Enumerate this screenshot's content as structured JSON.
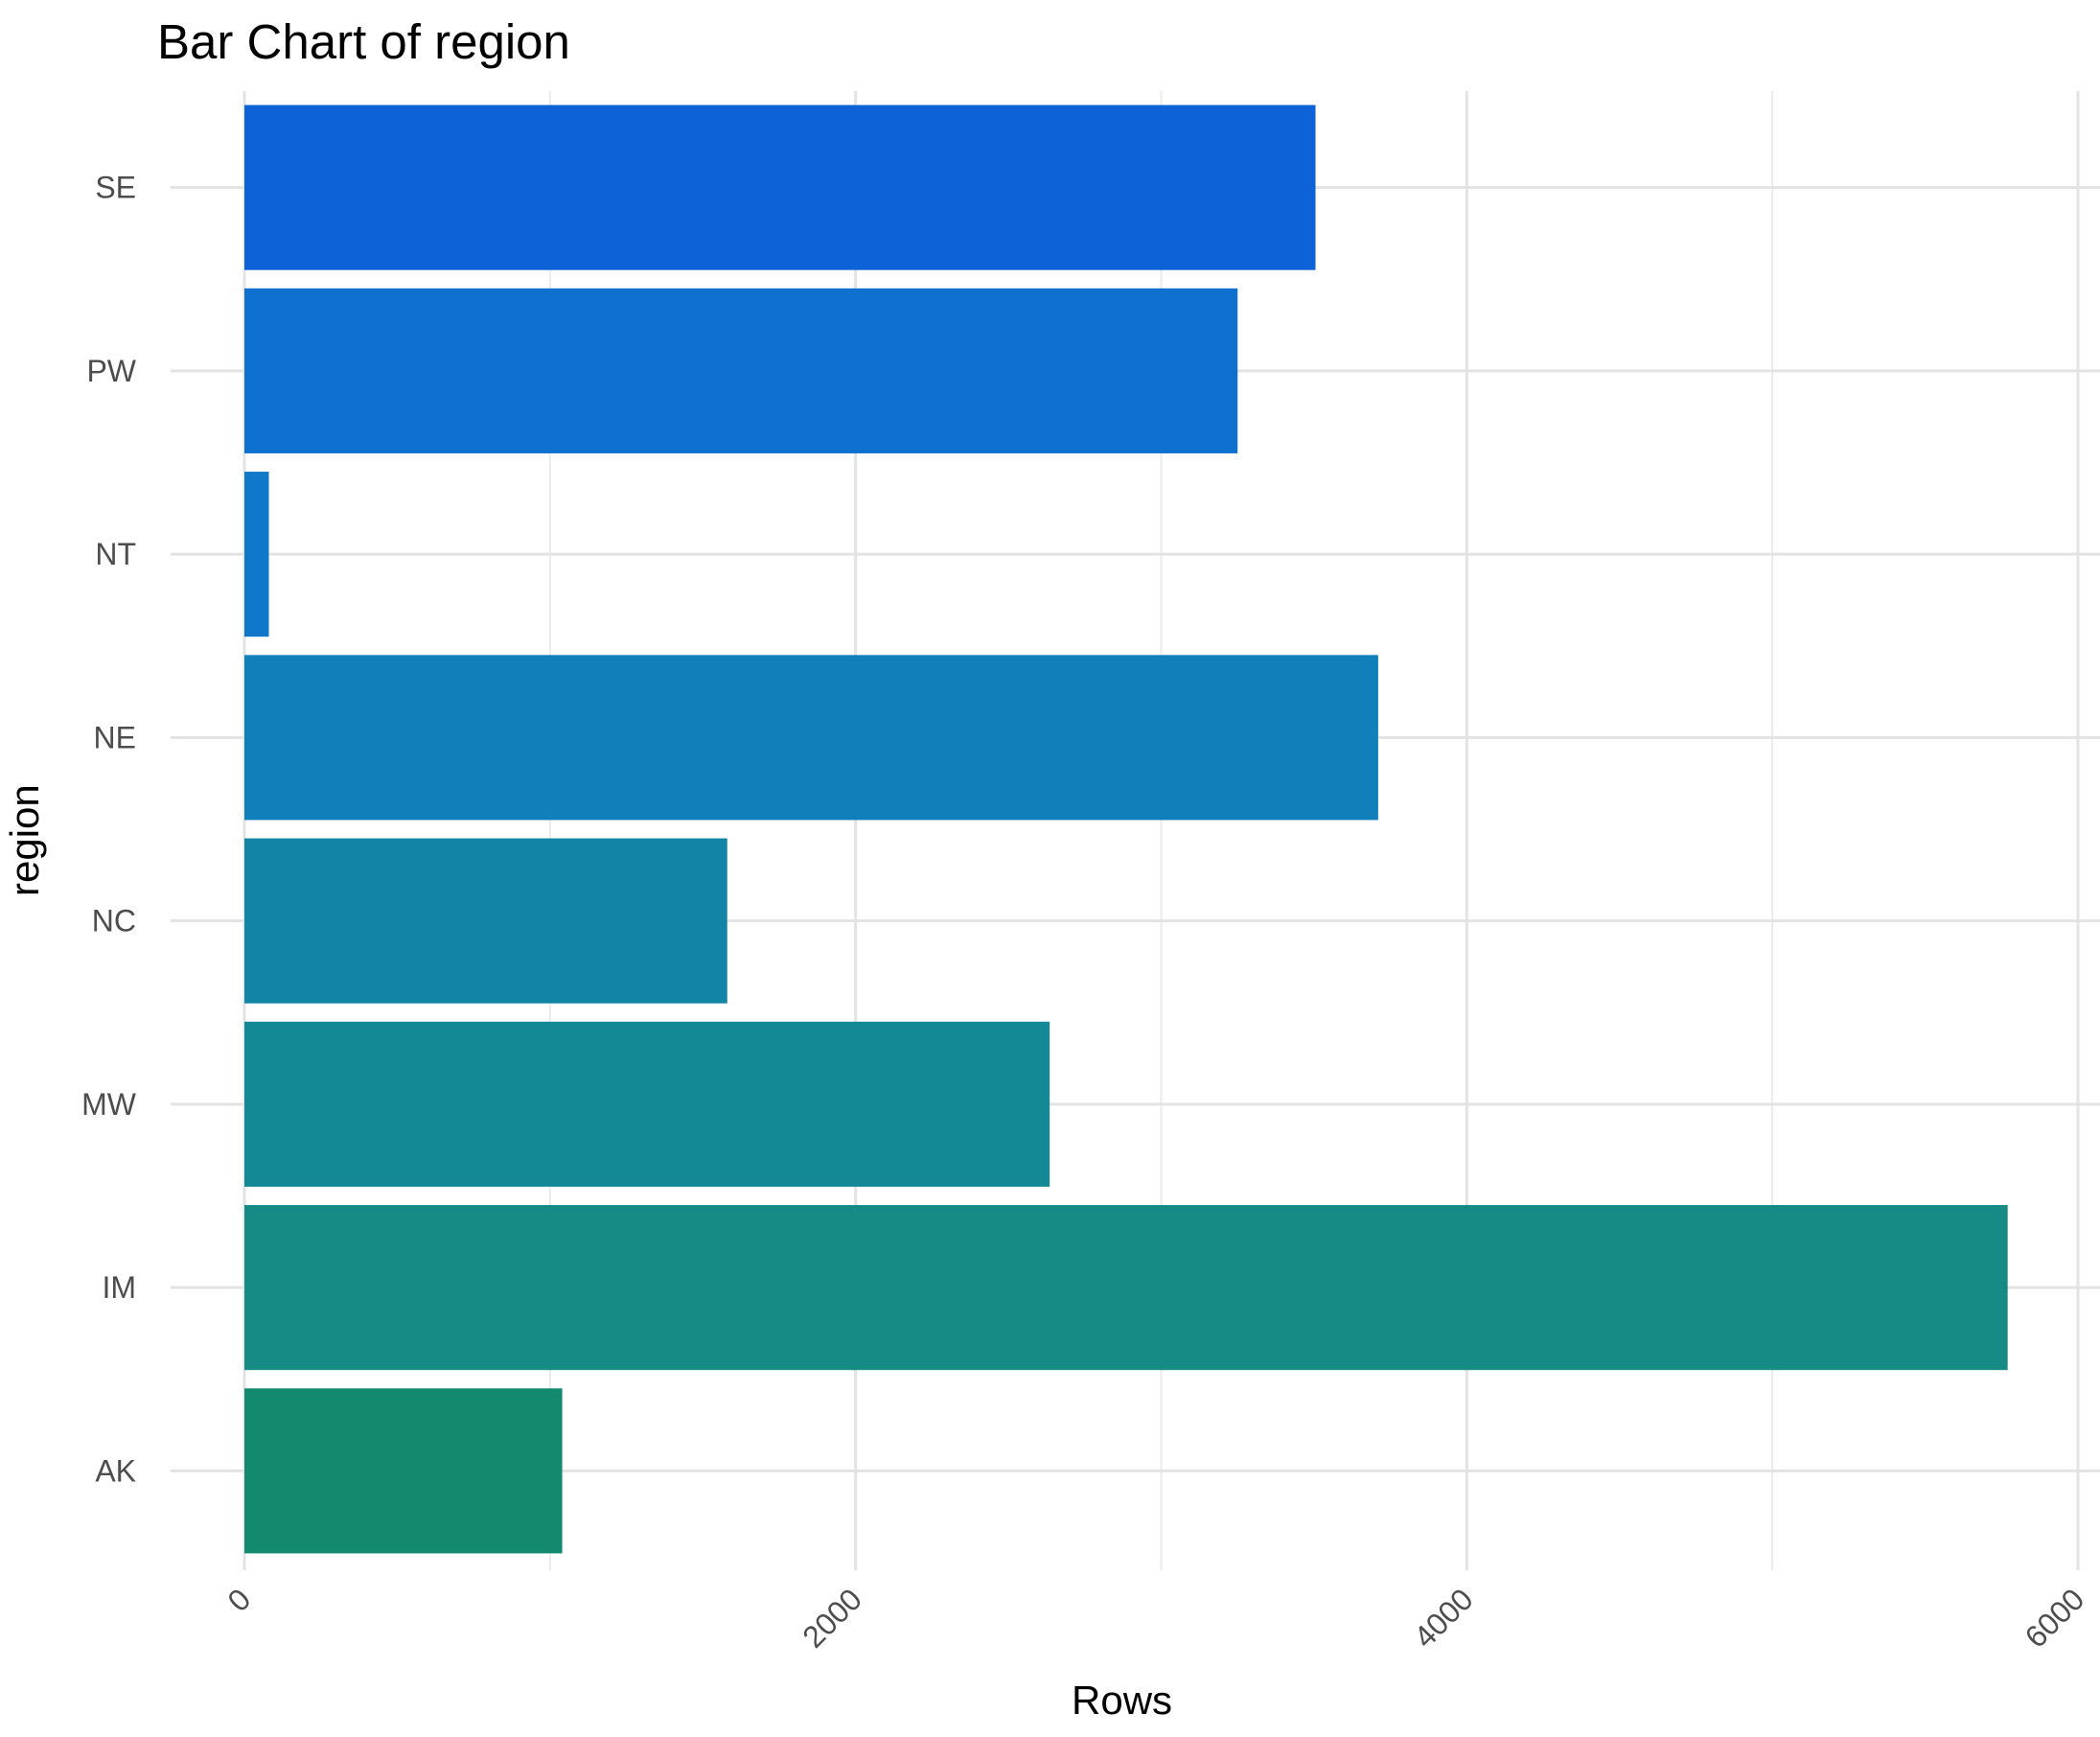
{
  "chart_data": {
    "type": "bar",
    "orientation": "horizontal",
    "title": "Bar Chart of region",
    "xlabel": "Rows",
    "ylabel": "region",
    "categories": [
      "AK",
      "IM",
      "MW",
      "NC",
      "NE",
      "NT",
      "PW",
      "SE"
    ],
    "values": [
      1040,
      5770,
      2635,
      1580,
      3710,
      80,
      3250,
      3505
    ],
    "colors": [
      "#138A6E",
      "#168A85",
      "#138996",
      "#1284A6",
      "#117FB9",
      "#0F78C9",
      "#0E70CF",
      "#0D62D7"
    ],
    "xlim": [
      0,
      6000
    ],
    "xticks": [
      0,
      2000,
      4000,
      6000
    ],
    "grid": true,
    "legend": "none"
  }
}
